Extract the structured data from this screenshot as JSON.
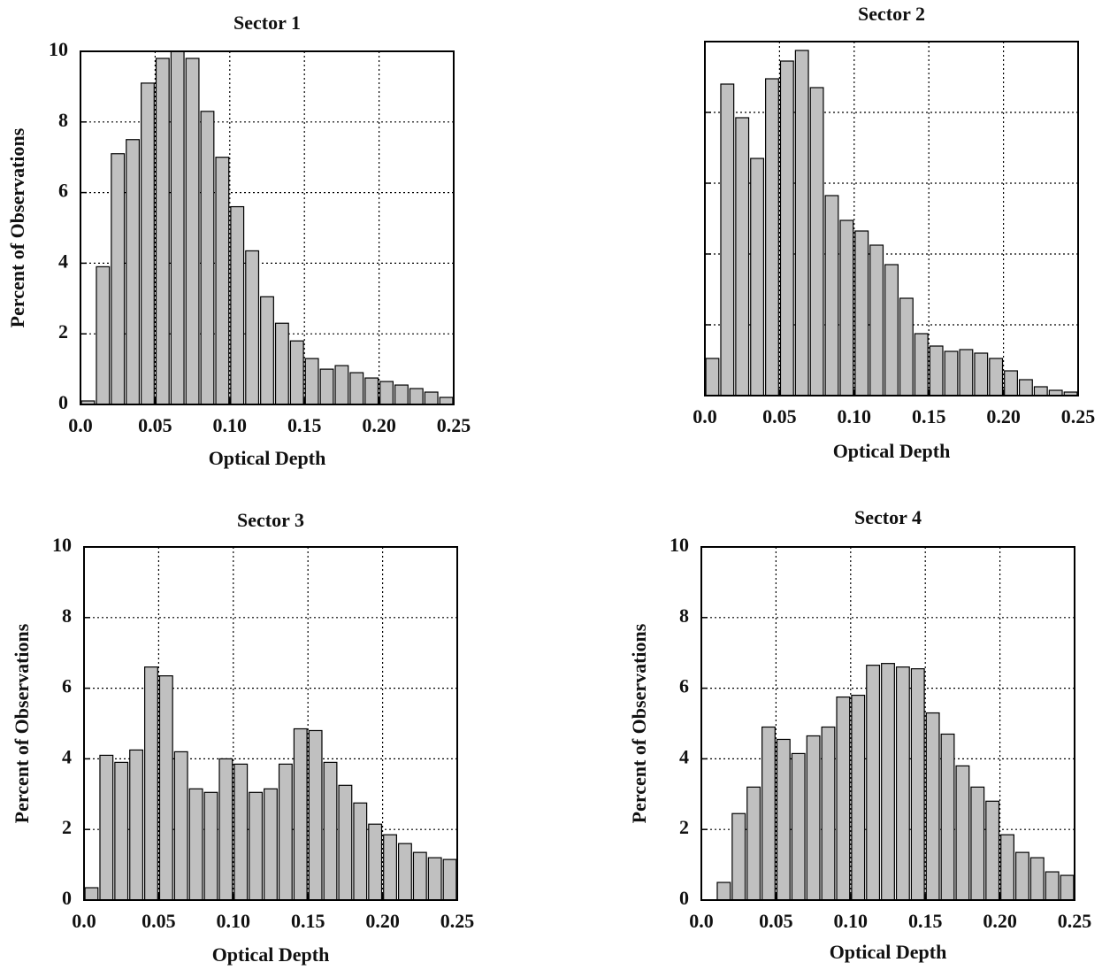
{
  "chart_data": [
    {
      "type": "histogram",
      "title": "Sector 1",
      "x_label": "Optical Depth",
      "y_label": "Percent of Observations",
      "bins": [
        0,
        0.01,
        0.02,
        0.03,
        0.04,
        0.05,
        0.06,
        0.07,
        0.08,
        0.09,
        0.1,
        0.11,
        0.12,
        0.13,
        0.14,
        0.15,
        0.16,
        0.17,
        0.18,
        0.19,
        0.2,
        0.21,
        0.22,
        0.23,
        0.24,
        0.25
      ],
      "values": [
        0.1,
        3.9,
        7.1,
        7.5,
        9.1,
        9.8,
        10.0,
        9.8,
        8.3,
        7.0,
        5.6,
        4.35,
        3.05,
        2.3,
        1.8,
        1.3,
        1.0,
        1.1,
        0.9,
        0.75,
        0.65,
        0.55,
        0.45,
        0.35,
        0.2
      ],
      "color": "#c0c0c0",
      "xlim": [
        0,
        0.25
      ],
      "ylim": [
        0,
        10
      ],
      "xticks": [
        {
          "value": 0,
          "label": "0.0"
        },
        0.05,
        {
          "value": 0.1,
          "label": "0.10"
        },
        0.15,
        {
          "value": 0.2,
          "label": "0.20"
        },
        0.25
      ],
      "yticks": [
        0,
        2,
        4,
        6,
        8,
        10
      ],
      "grid": true,
      "show_ytick_labels": true
    },
    {
      "type": "histogram",
      "title": "Sector 2",
      "x_label": "Optical Depth",
      "bins": [
        0,
        0.01,
        0.02,
        0.03,
        0.04,
        0.05,
        0.06,
        0.07,
        0.08,
        0.09,
        0.1,
        0.11,
        0.12,
        0.13,
        0.14,
        0.15,
        0.16,
        0.17,
        0.18,
        0.19,
        0.2,
        0.21,
        0.22,
        0.23,
        0.24,
        0.25
      ],
      "values": [
        1.05,
        8.8,
        7.85,
        6.7,
        8.95,
        9.45,
        9.75,
        8.7,
        5.65,
        4.95,
        4.65,
        4.25,
        3.7,
        2.75,
        1.75,
        1.4,
        1.25,
        1.3,
        1.2,
        1.05,
        0.7,
        0.45,
        0.25,
        0.15,
        0.1
      ],
      "color": "#c0c0c0",
      "xlim": [
        0,
        0.25
      ],
      "ylim": [
        0,
        10
      ],
      "xticks": [
        {
          "value": 0,
          "label": "0.0"
        },
        0.05,
        {
          "value": 0.1,
          "label": "0.10"
        },
        0.15,
        {
          "value": 0.2,
          "label": "0.20"
        },
        0.25
      ],
      "yticks": [
        0,
        2,
        4,
        6,
        8,
        10
      ],
      "grid": true,
      "show_ytick_labels": false
    },
    {
      "type": "histogram",
      "title": "Sector 3",
      "x_label": "Optical Depth",
      "y_label": "Percent of Observations",
      "bins": [
        0,
        0.01,
        0.02,
        0.03,
        0.04,
        0.05,
        0.06,
        0.07,
        0.08,
        0.09,
        0.1,
        0.11,
        0.12,
        0.13,
        0.14,
        0.15,
        0.16,
        0.17,
        0.18,
        0.19,
        0.2,
        0.21,
        0.22,
        0.23,
        0.24,
        0.25
      ],
      "values": [
        0.35,
        4.1,
        3.9,
        4.25,
        6.6,
        6.35,
        4.2,
        3.15,
        3.05,
        4.0,
        3.85,
        3.05,
        3.15,
        3.85,
        4.85,
        4.8,
        3.9,
        3.25,
        2.75,
        2.15,
        1.85,
        1.6,
        1.35,
        1.2,
        1.15
      ],
      "color": "#c0c0c0",
      "xlim": [
        0,
        0.25
      ],
      "ylim": [
        0,
        10
      ],
      "xticks": [
        {
          "value": 0,
          "label": "0.0"
        },
        0.05,
        {
          "value": 0.1,
          "label": "0.10"
        },
        0.15,
        {
          "value": 0.2,
          "label": "0.20"
        },
        0.25
      ],
      "yticks": [
        0,
        2,
        4,
        6,
        8,
        10
      ],
      "grid": true,
      "show_ytick_labels": true
    },
    {
      "type": "histogram",
      "title": "Sector 4",
      "x_label": "Optical Depth",
      "y_label": "Percent of Observations",
      "bins": [
        0,
        0.01,
        0.02,
        0.03,
        0.04,
        0.05,
        0.06,
        0.07,
        0.08,
        0.09,
        0.1,
        0.11,
        0.12,
        0.13,
        0.14,
        0.15,
        0.16,
        0.17,
        0.18,
        0.19,
        0.2,
        0.21,
        0.22,
        0.23,
        0.24,
        0.25
      ],
      "values": [
        0,
        0.5,
        2.45,
        3.2,
        4.9,
        4.55,
        4.15,
        4.65,
        4.9,
        5.75,
        5.8,
        6.65,
        6.7,
        6.6,
        6.55,
        5.3,
        4.7,
        3.8,
        3.2,
        2.8,
        1.85,
        1.35,
        1.2,
        0.8,
        0.7
      ],
      "color": "#c0c0c0",
      "xlim": [
        0,
        0.25
      ],
      "ylim": [
        0,
        10
      ],
      "xticks": [
        {
          "value": 0,
          "label": "0.0"
        },
        0.05,
        {
          "value": 0.1,
          "label": "0.10"
        },
        0.15,
        {
          "value": 0.2,
          "label": "0.20"
        },
        0.25
      ],
      "yticks": [
        0,
        2,
        4,
        6,
        8,
        10
      ],
      "grid": true,
      "show_ytick_labels": true
    }
  ]
}
